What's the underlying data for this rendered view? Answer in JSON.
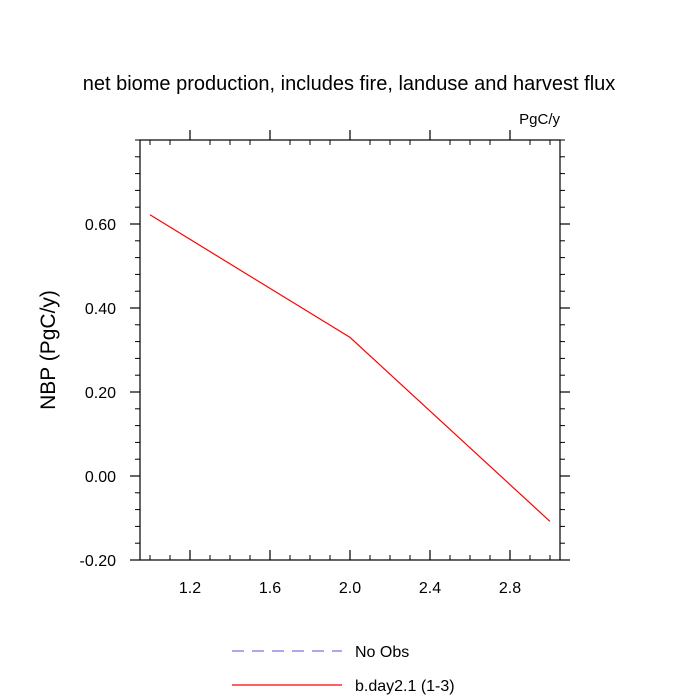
{
  "chart_data": {
    "type": "line",
    "title": "net biome production, includes fire, landuse and harvest flux",
    "units_label": "PgC/y",
    "xlabel": "",
    "ylabel": "NBP  (PgC/y)",
    "xlim": [
      0.95,
      3.05
    ],
    "ylim": [
      -0.2,
      0.8
    ],
    "x_ticks": [
      1.2,
      1.6,
      2.0,
      2.4,
      2.8
    ],
    "x_tick_labels": [
      "1.2",
      "1.6",
      "2.0",
      "2.4",
      "2.8"
    ],
    "y_ticks": [
      -0.2,
      0.0,
      0.2,
      0.4,
      0.6
    ],
    "y_tick_labels": [
      "-0.20",
      "0.00",
      "0.20",
      "0.40",
      "0.60"
    ],
    "grid": false,
    "legend_placement": "bottom-center",
    "series": [
      {
        "name": "No Obs",
        "color": "#7777dd",
        "dash": "dashed",
        "x": [],
        "y": []
      },
      {
        "name": "b.day2.1 (1-3)",
        "color": "#ff0000",
        "dash": "solid",
        "x": [
          1.0,
          2.0,
          3.0
        ],
        "y": [
          0.622,
          0.33,
          -0.108
        ]
      }
    ]
  }
}
